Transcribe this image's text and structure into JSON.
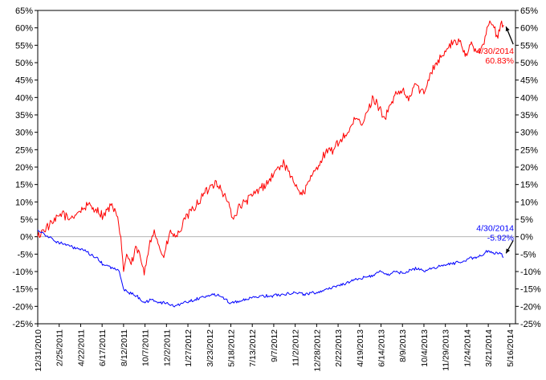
{
  "chart_data": {
    "type": "line",
    "title": "",
    "xlabel": "",
    "ylabel": "",
    "ylim": [
      -25,
      65
    ],
    "y_tick_step": 5,
    "y_axis_format": "percent",
    "right_axis": true,
    "zero_line": true,
    "grid": false,
    "x_range": [
      "2010-12-31",
      "2014-05-31"
    ],
    "x_tick_labels": [
      "12/31/2010",
      "2/25/2011",
      "4/22/2011",
      "6/17/2011",
      "8/12/2011",
      "10/7/2011",
      "12/2/2011",
      "1/27/2012",
      "3/23/2012",
      "5/18/2012",
      "7/13/2012",
      "9/7/2012",
      "11/2/2012",
      "12/28/2012",
      "2/22/2013",
      "4/19/2013",
      "6/14/2013",
      "8/9/2013",
      "10/4/2013",
      "11/29/2013",
      "1/24/2014",
      "3/21/2014",
      "5/16/2014"
    ],
    "series": [
      {
        "color": "#ff0000",
        "x": [
          "2010-12-31",
          "2011-01-15",
          "2011-02-10",
          "2011-03-05",
          "2011-03-20",
          "2011-04-15",
          "2011-05-10",
          "2011-06-01",
          "2011-06-20",
          "2011-07-10",
          "2011-07-25",
          "2011-08-05",
          "2011-08-12",
          "2011-08-20",
          "2011-09-01",
          "2011-09-15",
          "2011-09-25",
          "2011-10-05",
          "2011-10-20",
          "2011-10-31",
          "2011-11-10",
          "2011-11-25",
          "2011-12-10",
          "2011-12-30",
          "2012-01-20",
          "2012-02-10",
          "2012-03-01",
          "2012-03-23",
          "2012-04-10",
          "2012-04-25",
          "2012-05-10",
          "2012-05-25",
          "2012-06-05",
          "2012-06-25",
          "2012-07-15",
          "2012-08-05",
          "2012-08-25",
          "2012-09-07",
          "2012-09-20",
          "2012-10-05",
          "2012-10-20",
          "2012-11-05",
          "2012-11-20",
          "2012-12-10",
          "2012-12-28",
          "2013-01-20",
          "2013-02-10",
          "2013-03-01",
          "2013-03-20",
          "2013-04-10",
          "2013-04-25",
          "2013-05-10",
          "2013-05-25",
          "2013-06-10",
          "2013-06-24",
          "2013-07-10",
          "2013-07-25",
          "2013-08-09",
          "2013-08-25",
          "2013-09-10",
          "2013-09-25",
          "2013-10-04",
          "2013-10-20",
          "2013-11-05",
          "2013-11-20",
          "2013-12-05",
          "2013-12-20",
          "2014-01-05",
          "2014-01-15",
          "2014-01-24",
          "2014-02-05",
          "2014-02-20",
          "2014-03-05",
          "2014-03-15",
          "2014-03-25",
          "2014-04-05",
          "2014-04-15",
          "2014-04-22",
          "2014-04-30"
        ],
        "values": [
          0,
          2,
          4,
          7,
          5,
          7,
          9,
          8,
          6,
          9,
          6,
          0,
          -10,
          -5,
          -8,
          -3,
          -6,
          -11,
          -1,
          2,
          -2,
          -6,
          1,
          0,
          5,
          8,
          11,
          14,
          16,
          13,
          10,
          5,
          8,
          10,
          12,
          14,
          16,
          18,
          20,
          21,
          17,
          15,
          12,
          16,
          20,
          24,
          25,
          28,
          30,
          34,
          32,
          36,
          40,
          37,
          34,
          38,
          41,
          42,
          39,
          44,
          42,
          41,
          47,
          50,
          52,
          54,
          56,
          56,
          53,
          52,
          56,
          53,
          55,
          58,
          62,
          60,
          57,
          61,
          60.83
        ]
      },
      {
        "color": "#0000ff",
        "x": [
          "2010-12-31",
          "2011-01-15",
          "2011-02-10",
          "2011-03-05",
          "2011-04-01",
          "2011-05-01",
          "2011-06-01",
          "2011-06-20",
          "2011-07-15",
          "2011-08-01",
          "2011-08-12",
          "2011-08-25",
          "2011-09-15",
          "2011-10-07",
          "2011-10-25",
          "2011-11-15",
          "2011-12-02",
          "2011-12-20",
          "2012-01-15",
          "2012-02-15",
          "2012-03-15",
          "2012-04-15",
          "2012-05-18",
          "2012-06-05",
          "2012-07-01",
          "2012-08-01",
          "2012-09-01",
          "2012-10-01",
          "2012-11-01",
          "2012-11-25",
          "2012-12-28",
          "2013-01-25",
          "2013-02-22",
          "2013-03-25",
          "2013-04-19",
          "2013-05-10",
          "2013-05-25",
          "2013-06-14",
          "2013-06-30",
          "2013-07-20",
          "2013-08-09",
          "2013-08-30",
          "2013-09-20",
          "2013-10-04",
          "2013-10-25",
          "2013-11-15",
          "2013-12-05",
          "2013-12-25",
          "2014-01-15",
          "2014-01-24",
          "2014-02-10",
          "2014-03-01",
          "2014-03-21",
          "2014-04-05",
          "2014-04-20",
          "2014-04-30"
        ],
        "values": [
          2,
          1,
          -1,
          -2,
          -3,
          -4,
          -6,
          -8,
          -9,
          -10,
          -15,
          -16,
          -17,
          -19,
          -18,
          -19,
          -19,
          -20,
          -19,
          -18,
          -17,
          -16.5,
          -19,
          -18.5,
          -18,
          -17,
          -17,
          -16.5,
          -16,
          -16.5,
          -16,
          -15,
          -14,
          -13,
          -12,
          -11.5,
          -11,
          -10,
          -11,
          -10,
          -10.5,
          -9.5,
          -9,
          -10,
          -9,
          -8.5,
          -8,
          -7.5,
          -7,
          -6.5,
          -6,
          -5.5,
          -4,
          -5,
          -4.5,
          -5.92
        ]
      }
    ],
    "annotations": [
      {
        "series": 0,
        "date_text": "4/30/2014",
        "value_text": "60.83%",
        "color": "#ff0000"
      },
      {
        "series": 1,
        "date_text": "4/30/2014",
        "value_text": "-5.92%",
        "color": "#0000ff"
      }
    ]
  }
}
